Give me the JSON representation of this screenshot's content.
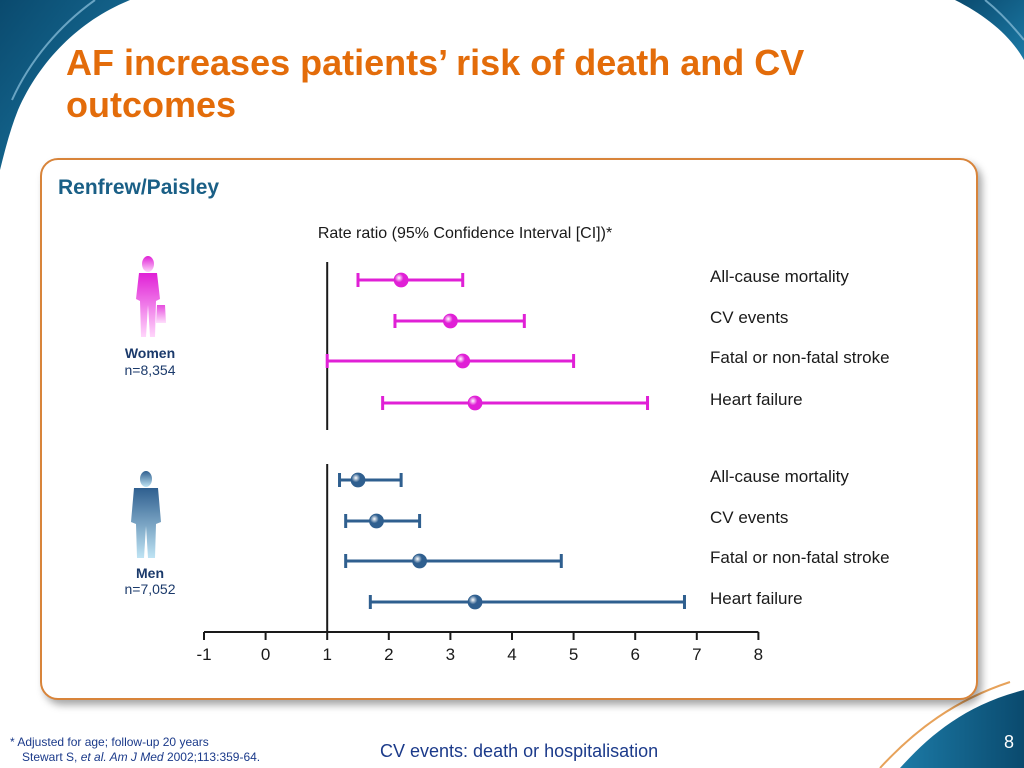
{
  "slide": {
    "title": "AF increases patients’ risk of death and CV outcomes",
    "panel_title": "Renfrew/Paisley",
    "footnote_line1": "* Adjusted for age; follow-up 20 years",
    "footnote_line2_prefix": "Stewart S, ",
    "footnote_line2_italic": "et al. Am J Med",
    "footnote_line2_suffix": " 2002;113:359-64.",
    "cv_note": "CV events: death or hospitalisation",
    "page_number": "8"
  },
  "colors": {
    "title": "#e36c0a",
    "panel_border": "#d8843a",
    "panel_title": "#1a5f86",
    "women": "#e020d6",
    "men": "#2f5f8f",
    "deco_blue": "#0b4e74",
    "footer_text": "#1b3a8a"
  },
  "icons": {
    "women": "woman-figure-icon",
    "men": "man-figure-icon"
  },
  "chart_data": {
    "type": "forest",
    "title": "Rate ratio (95% Confidence Interval [CI])*",
    "x_ticks": [
      -1,
      0,
      1,
      2,
      3,
      4,
      5,
      6,
      7,
      8
    ],
    "xlim": [
      -1,
      8
    ],
    "reference_line": 1,
    "groups": [
      {
        "name": "Women",
        "n_label": "n=8,354",
        "color": "#e020d6",
        "rows": [
          {
            "label": "All-cause mortality",
            "estimate": 2.2,
            "lower": 1.5,
            "upper": 3.2
          },
          {
            "label": "CV events",
            "estimate": 3.0,
            "lower": 2.1,
            "upper": 4.2
          },
          {
            "label": "Fatal or non-fatal stroke",
            "estimate": 3.2,
            "lower": 1.0,
            "upper": 5.0
          },
          {
            "label": "Heart failure",
            "estimate": 3.4,
            "lower": 1.9,
            "upper": 6.2
          }
        ]
      },
      {
        "name": "Men",
        "n_label": "n=7,052",
        "color": "#2f5f8f",
        "rows": [
          {
            "label": "All-cause mortality",
            "estimate": 1.5,
            "lower": 1.2,
            "upper": 2.2
          },
          {
            "label": "CV events",
            "estimate": 1.8,
            "lower": 1.3,
            "upper": 2.5
          },
          {
            "label": "Fatal or non-fatal stroke",
            "estimate": 2.5,
            "lower": 1.3,
            "upper": 4.8
          },
          {
            "label": "Heart failure",
            "estimate": 3.4,
            "lower": 1.7,
            "upper": 6.8
          }
        ]
      }
    ]
  }
}
